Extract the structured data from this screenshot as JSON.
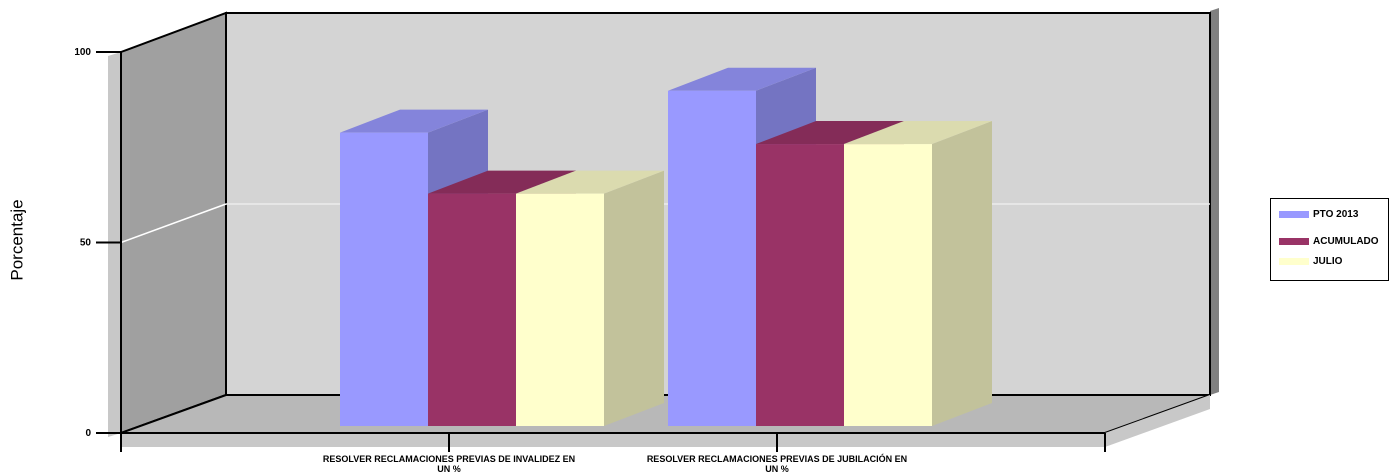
{
  "chart_data": {
    "type": "bar",
    "title": "",
    "ylabel": "Porcentaje",
    "xlabel": "",
    "ylim": [
      0,
      100
    ],
    "yticks": [
      0,
      50,
      100
    ],
    "grid": true,
    "legend_position": "right",
    "three_d": true,
    "categories": [
      "RESOLVER RECLAMACIONES PREVIAS DE INVALIDEZ EN UN %",
      "RESOLVER RECLAMACIONES PREVIAS DE JUBILACIÓN EN UN %"
    ],
    "series": [
      {
        "name": "PTO 2013",
        "values": [
          77,
          88
        ],
        "color": "#9999ff"
      },
      {
        "name": "ACUMULADO",
        "values": [
          61,
          74
        ],
        "color": "#993366"
      },
      {
        "name": "JULIO",
        "values": [
          61,
          74
        ],
        "color": "#ffffcc"
      }
    ]
  }
}
